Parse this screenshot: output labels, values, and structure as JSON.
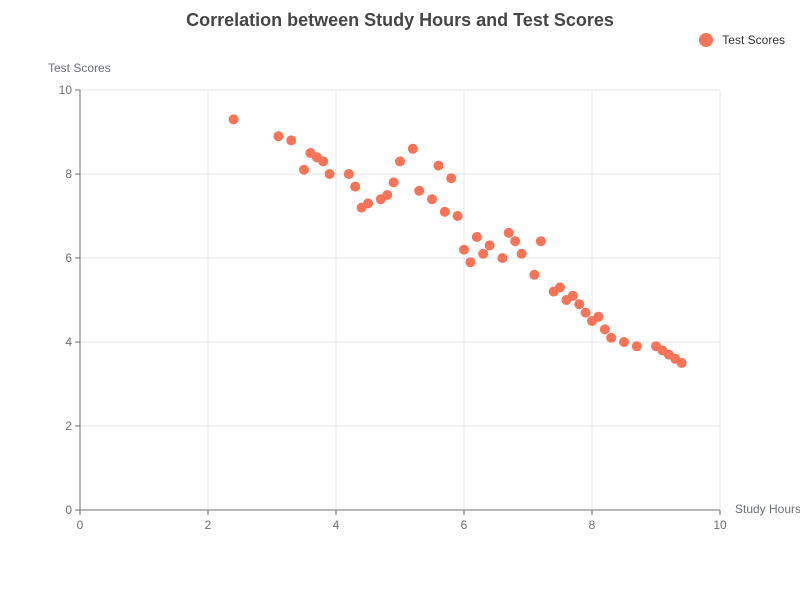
{
  "colors": {
    "series": "#f87458",
    "grid": "#e6e6ef",
    "axis": "#6e7079",
    "text": "#6e7079"
  },
  "chart_data": {
    "type": "scatter",
    "title": "Correlation between Study Hours and Test Scores",
    "xlabel": "Study Hours",
    "ylabel": "Test Scores",
    "xlim": [
      0,
      10
    ],
    "ylim": [
      0,
      10
    ],
    "x_ticks": [
      0,
      2,
      4,
      6,
      8,
      10
    ],
    "y_ticks": [
      0,
      2,
      4,
      6,
      8,
      10
    ],
    "grid": true,
    "legend_position": "top-right",
    "series": [
      {
        "name": "Test Scores",
        "points": [
          [
            2.4,
            9.3
          ],
          [
            3.1,
            8.9
          ],
          [
            3.3,
            8.8
          ],
          [
            3.5,
            8.1
          ],
          [
            3.6,
            8.5
          ],
          [
            3.7,
            8.4
          ],
          [
            3.8,
            8.3
          ],
          [
            3.9,
            8.0
          ],
          [
            4.2,
            8.0
          ],
          [
            4.3,
            7.7
          ],
          [
            4.4,
            7.2
          ],
          [
            4.5,
            7.3
          ],
          [
            4.7,
            7.4
          ],
          [
            4.8,
            7.5
          ],
          [
            4.9,
            7.8
          ],
          [
            5.0,
            8.3
          ],
          [
            5.2,
            8.6
          ],
          [
            5.3,
            7.6
          ],
          [
            5.5,
            7.4
          ],
          [
            5.6,
            8.2
          ],
          [
            5.7,
            7.1
          ],
          [
            5.8,
            7.9
          ],
          [
            5.9,
            7.0
          ],
          [
            6.0,
            6.2
          ],
          [
            6.1,
            5.9
          ],
          [
            6.2,
            6.5
          ],
          [
            6.3,
            6.1
          ],
          [
            6.4,
            6.3
          ],
          [
            6.6,
            6.0
          ],
          [
            6.7,
            6.6
          ],
          [
            6.8,
            6.4
          ],
          [
            6.9,
            6.1
          ],
          [
            7.1,
            5.6
          ],
          [
            7.2,
            6.4
          ],
          [
            7.4,
            5.2
          ],
          [
            7.5,
            5.3
          ],
          [
            7.6,
            5.0
          ],
          [
            7.7,
            5.1
          ],
          [
            7.8,
            4.9
          ],
          [
            7.9,
            4.7
          ],
          [
            8.0,
            4.5
          ],
          [
            8.1,
            4.6
          ],
          [
            8.2,
            4.3
          ],
          [
            8.3,
            4.1
          ],
          [
            8.5,
            4.0
          ],
          [
            8.7,
            3.9
          ],
          [
            9.0,
            3.9
          ],
          [
            9.1,
            3.8
          ],
          [
            9.2,
            3.7
          ],
          [
            9.3,
            3.6
          ],
          [
            9.4,
            3.5
          ]
        ]
      }
    ]
  }
}
